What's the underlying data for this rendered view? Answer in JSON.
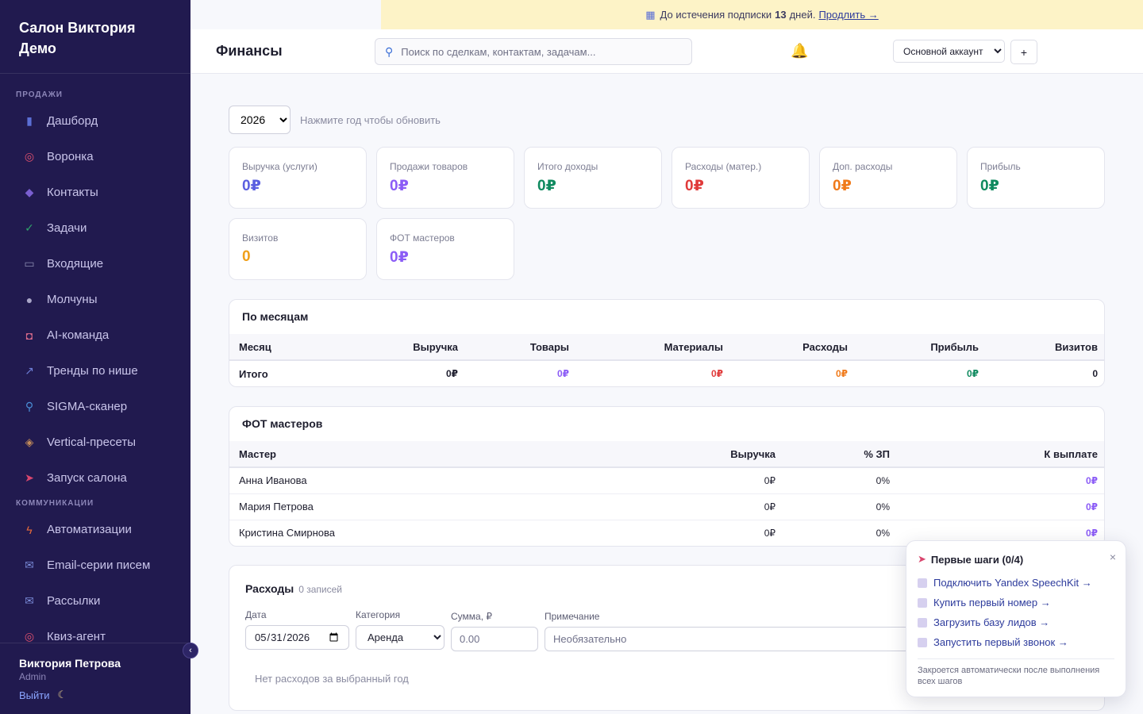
{
  "brand": {
    "line1": "Салон Виктория",
    "line2": "Демо"
  },
  "sidebar": {
    "sections": [
      {
        "label": "ПРОДАЖИ",
        "items": [
          {
            "label": "Дашборд",
            "icon": "bar-chart-icon",
            "color": "#5b6fd6"
          },
          {
            "label": "Воронка",
            "icon": "target-icon",
            "color": "#e0506e"
          },
          {
            "label": "Контакты",
            "icon": "users-icon",
            "color": "#7a5fd0"
          },
          {
            "label": "Задачи",
            "icon": "checkbox-icon",
            "color": "#2fa36b"
          },
          {
            "label": "Входящие",
            "icon": "inbox-icon",
            "color": "#8a8bb0"
          },
          {
            "label": "Молчуны",
            "icon": "speech-bubble-icon",
            "color": "#a9a6c8"
          },
          {
            "label": "AI-команда",
            "icon": "robot-icon",
            "color": "#d86a8a"
          },
          {
            "label": "Тренды по нише",
            "icon": "trend-chart-icon",
            "color": "#6f7fd8"
          },
          {
            "label": "SIGMA-сканер",
            "icon": "magnifier-icon",
            "color": "#4a8fd8"
          },
          {
            "label": "Vertical-пресеты",
            "icon": "package-icon",
            "color": "#c08a5a"
          },
          {
            "label": "Запуск салона",
            "icon": "rocket-icon",
            "color": "#d9466e"
          }
        ]
      },
      {
        "label": "КОММУНИКАЦИИ",
        "items": [
          {
            "label": "Автоматизации",
            "icon": "lightning-icon",
            "color": "#e86a3a"
          },
          {
            "label": "Email-серии писем",
            "icon": "email-icon",
            "color": "#7a8bd8"
          },
          {
            "label": "Рассылки",
            "icon": "mail-icon",
            "color": "#7a8bd8"
          },
          {
            "label": "Квиз-агент",
            "icon": "target-icon",
            "color": "#e0506e"
          }
        ]
      }
    ],
    "user": {
      "name": "Виктория Петрова",
      "role": "Admin",
      "logout": "Выйти"
    }
  },
  "banner": {
    "text": "До истечения подписки",
    "days": "13",
    "days_suffix": "дней.",
    "renew": "Продлить →"
  },
  "header": {
    "title": "Финансы",
    "search_placeholder": "Поиск по сделкам, контактам, задачам...",
    "account": "Основной аккаунт",
    "plus": "+"
  },
  "year": {
    "value": "2026",
    "hint": "Нажмите год чтобы обновить"
  },
  "cards": [
    {
      "label": "Выручка (услуги)",
      "value": "0₽",
      "color": "#5b5fe0"
    },
    {
      "label": "Продажи товаров",
      "value": "0₽",
      "color": "#8b5cf6"
    },
    {
      "label": "Итого доходы",
      "value": "0₽",
      "color": "#0f8a5f"
    },
    {
      "label": "Расходы (матер.)",
      "value": "0₽",
      "color": "#e03a3a"
    },
    {
      "label": "Доп. расходы",
      "value": "0₽",
      "color": "#f07a1a"
    },
    {
      "label": "Прибыль",
      "value": "0₽",
      "color": "#0f8a5f"
    },
    {
      "label": "Визитов",
      "value": "0",
      "color": "#f0a01a"
    },
    {
      "label": "ФОТ мастеров",
      "value": "0₽",
      "color": "#8b5cf6"
    }
  ],
  "monthly": {
    "title": "По месяцам",
    "headers": [
      "Месяц",
      "Выручка",
      "Товары",
      "Материалы",
      "Расходы",
      "Прибыль",
      "Визитов"
    ],
    "total": {
      "label": "Итого",
      "revenue": "0₽",
      "goods": "0₽",
      "materials": "0₽",
      "expenses": "0₽",
      "profit": "0₽",
      "visits": "0"
    }
  },
  "payroll": {
    "title": "ФОТ мастеров",
    "headers": [
      "Мастер",
      "Выручка",
      "% ЗП",
      "К выплате"
    ],
    "rows": [
      {
        "name": "Анна Иванова",
        "revenue": "0₽",
        "pct": "0%",
        "pay": "0₽"
      },
      {
        "name": "Мария Петрова",
        "revenue": "0₽",
        "pct": "0%",
        "pay": "0₽"
      },
      {
        "name": "Кристина Смирнова",
        "revenue": "0₽",
        "pct": "0%",
        "pay": "0₽"
      }
    ]
  },
  "expenses": {
    "title": "Расходы",
    "count": "0 записей",
    "date_label": "Дата",
    "date_value": "2026-05-31",
    "category_label": "Категория",
    "category_value": "Аренда",
    "amount_label": "Сумма, ₽",
    "amount_placeholder": "0.00",
    "note_label": "Примечание",
    "note_placeholder": "Необязательно",
    "empty": "Нет расходов за выбранный год"
  },
  "onboarding": {
    "title": "Первые шаги (0/4)",
    "close": "×",
    "items": [
      "Подключить Yandex SpeechKit →",
      "Купить первый номер →",
      "Загрузить базу лидов →",
      "Запустить первый звонок →"
    ],
    "footer": "Закроется автоматически после выполнения всех шагов"
  }
}
